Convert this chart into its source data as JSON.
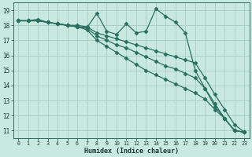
{
  "xlabel": "Humidex (Indice chaleur)",
  "bg_color": "#c8e8e0",
  "grid_color": "#a8ccc8",
  "line_color": "#2a7060",
  "xlim": [
    -0.5,
    23.5
  ],
  "ylim": [
    10.5,
    19.5
  ],
  "yticks": [
    11,
    12,
    13,
    14,
    15,
    16,
    17,
    18,
    19
  ],
  "xticks": [
    0,
    1,
    2,
    3,
    4,
    5,
    6,
    7,
    8,
    9,
    10,
    11,
    12,
    13,
    14,
    15,
    16,
    17,
    18,
    19,
    20,
    21,
    22,
    23
  ],
  "lines": [
    {
      "x": [
        0,
        1,
        2,
        3,
        4,
        5,
        6,
        7,
        8,
        9,
        10,
        11,
        12,
        13,
        14,
        15,
        16,
        17,
        18,
        19,
        20,
        21,
        22,
        23
      ],
      "y": [
        18.3,
        18.3,
        18.4,
        18.2,
        18.1,
        18.0,
        17.9,
        17.85,
        18.8,
        17.6,
        17.4,
        18.1,
        17.5,
        17.6,
        19.1,
        18.6,
        18.2,
        17.5,
        15.0,
        13.8,
        12.6,
        11.8,
        11.0,
        10.9
      ],
      "marker": true
    },
    {
      "x": [
        0,
        1,
        2,
        3,
        4,
        5,
        6,
        7,
        8,
        9,
        10,
        11,
        12,
        13,
        14,
        15,
        16,
        17,
        18,
        19,
        20,
        21,
        22,
        23
      ],
      "y": [
        18.3,
        18.3,
        18.3,
        18.2,
        18.1,
        18.0,
        18.0,
        17.9,
        17.5,
        17.3,
        17.1,
        16.9,
        16.7,
        16.5,
        16.3,
        16.1,
        15.9,
        15.7,
        15.5,
        14.5,
        13.4,
        12.4,
        11.4,
        10.9
      ],
      "marker": true
    },
    {
      "x": [
        0,
        1,
        2,
        3,
        4,
        5,
        6,
        7,
        8,
        9,
        10,
        11,
        12,
        13,
        14,
        15,
        16,
        17,
        18,
        19,
        20,
        21,
        22,
        23
      ],
      "y": [
        18.3,
        18.3,
        18.3,
        18.2,
        18.1,
        18.0,
        17.9,
        17.8,
        17.3,
        17.0,
        16.7,
        16.5,
        16.2,
        15.9,
        15.6,
        15.3,
        15.1,
        14.8,
        14.5,
        13.8,
        12.8,
        11.8,
        11.0,
        10.9
      ],
      "marker": true
    },
    {
      "x": [
        0,
        1,
        2,
        3,
        4,
        5,
        6,
        7,
        8,
        9,
        10,
        11,
        12,
        13,
        14,
        15,
        16,
        17,
        18,
        19,
        20,
        21,
        22,
        23
      ],
      "y": [
        18.3,
        18.3,
        18.3,
        18.2,
        18.1,
        18.0,
        17.9,
        17.7,
        17.0,
        16.6,
        16.2,
        15.8,
        15.4,
        15.0,
        14.7,
        14.4,
        14.1,
        13.8,
        13.5,
        13.1,
        12.4,
        11.8,
        11.0,
        10.9
      ],
      "marker": true
    }
  ],
  "marker_symbol": "D",
  "markersize": 2.5,
  "linewidth": 0.9
}
